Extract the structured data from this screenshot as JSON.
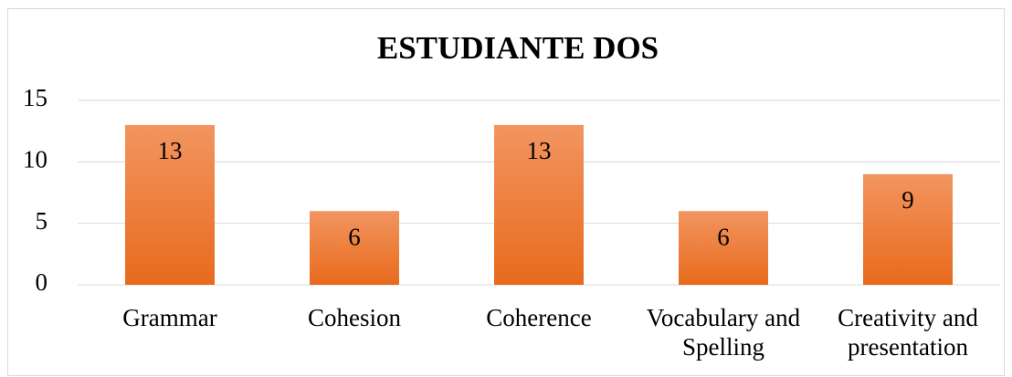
{
  "chart_data": {
    "type": "bar",
    "title": "ESTUDIANTE DOS",
    "categories": [
      "Grammar",
      "Cohesion",
      "Coherence",
      "Vocabulary and Spelling",
      "Creativity and presentation"
    ],
    "values": [
      13,
      6,
      13,
      6,
      9
    ],
    "color": "#ed7d31",
    "ylim": [
      0,
      15
    ],
    "yticks": [
      0,
      5,
      10,
      15
    ],
    "grid": true
  }
}
